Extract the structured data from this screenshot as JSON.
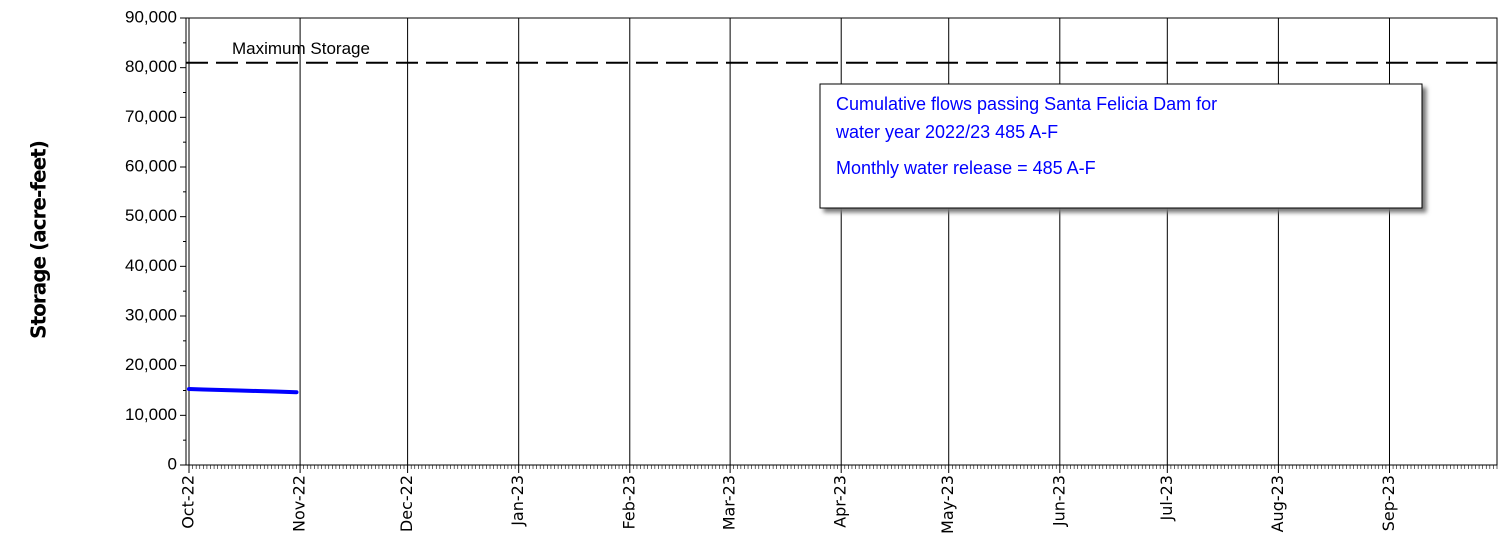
{
  "chart_data": {
    "type": "line",
    "ylabel": "Storage (acre-feet)",
    "x": [
      "2022-10-01",
      "2022-10-05",
      "2022-10-10",
      "2022-10-15",
      "2022-10-20",
      "2022-10-25",
      "2022-10-31"
    ],
    "series": [
      {
        "name": "Storage",
        "color": "#0000ff",
        "values": [
          15300,
          15200,
          15100,
          15000,
          14900,
          14800,
          14650
        ]
      }
    ],
    "xlim": [
      "2022-10-01",
      "2023-10-01"
    ],
    "xticks": [
      {
        "value": "2022-10-01",
        "label": "Oct-22"
      },
      {
        "value": "2022-11-01",
        "label": "Nov-22"
      },
      {
        "value": "2022-12-01",
        "label": "Dec-22"
      },
      {
        "value": "2023-01-01",
        "label": "Jan-23"
      },
      {
        "value": "2023-02-01",
        "label": "Feb-23"
      },
      {
        "value": "2023-03-01",
        "label": "Mar-23"
      },
      {
        "value": "2023-04-01",
        "label": "Apr-23"
      },
      {
        "value": "2023-05-01",
        "label": "May-23"
      },
      {
        "value": "2023-06-01",
        "label": "Jun-23"
      },
      {
        "value": "2023-07-01",
        "label": "Jul-23"
      },
      {
        "value": "2023-08-01",
        "label": "Aug-23"
      },
      {
        "value": "2023-09-01",
        "label": "Sep-23"
      }
    ],
    "ylim": [
      0,
      90000
    ],
    "yticks": [
      0,
      {
        "value": 10000,
        "label": "10,000"
      },
      {
        "value": 20000,
        "label": "20,000"
      },
      {
        "value": 30000,
        "label": "30,000"
      },
      {
        "value": 40000,
        "label": "40,000"
      },
      {
        "value": 50000,
        "label": "50,000"
      },
      {
        "value": 60000,
        "label": "60,000"
      },
      {
        "value": 70000,
        "label": "70,000"
      },
      {
        "value": 80000,
        "label": "80,000"
      },
      {
        "value": 90000,
        "label": "90,000"
      }
    ],
    "grid": "x",
    "reference_line": {
      "label": "Maximum Storage",
      "value": 81000
    },
    "annotation": [
      "Cumulative flows passing Santa Felicia Dam for",
      "water year 2022/23  485 A-F",
      "Monthly water release = 485 A-F"
    ]
  }
}
